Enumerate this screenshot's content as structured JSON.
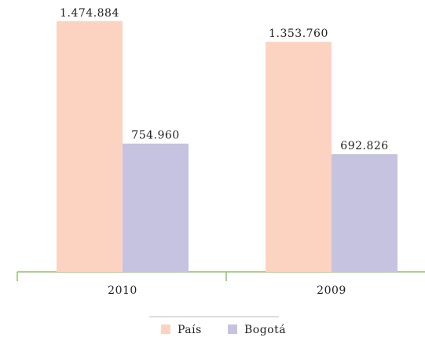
{
  "chart_data": {
    "type": "bar",
    "categories": [
      "2010",
      "2009"
    ],
    "series": [
      {
        "name": "País",
        "color": "#fcd3c1",
        "values": [
          1474884,
          1353760
        ],
        "value_labels": [
          "1.474.884",
          "1.353.760"
        ]
      },
      {
        "name": "Bogotá",
        "color": "#c6c3e1",
        "values": [
          754960,
          692826
        ],
        "value_labels": [
          "754.960",
          "692.826"
        ]
      }
    ],
    "ylim": [
      0,
      1600000
    ]
  }
}
